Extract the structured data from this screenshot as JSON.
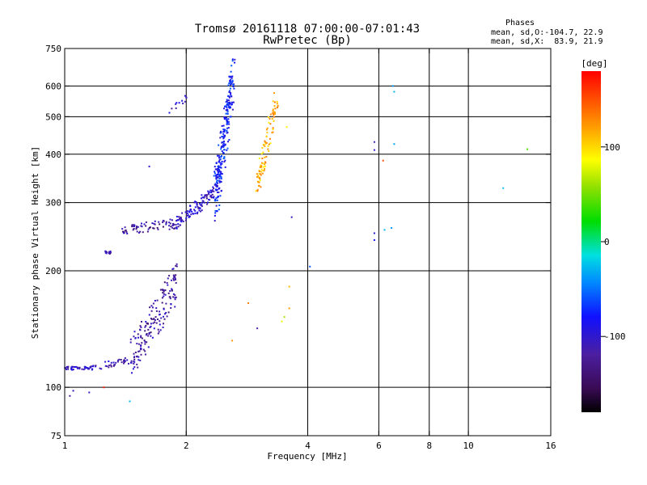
{
  "chart_data": {
    "type": "scatter",
    "title_line1": "Tromsø 20161118 07:00:00-07:01:43",
    "title_line2": "RwPretec (Bp)",
    "xlabel": "Frequency [MHz]",
    "ylabel": "Stationary phase Virtual Height [km]",
    "x_scale": "log",
    "y_scale": "log",
    "xlim": [
      1,
      16
    ],
    "ylim": [
      75,
      750
    ],
    "x_ticks": [
      1,
      2,
      4,
      6,
      8,
      10,
      16
    ],
    "y_ticks": [
      75,
      100,
      200,
      300,
      400,
      500,
      600,
      750
    ],
    "x_grid": [
      2,
      4,
      6,
      8,
      10
    ],
    "y_grid": [
      100,
      200,
      300,
      400,
      500,
      600
    ],
    "grid": true,
    "phases": {
      "heading": "Phases",
      "o_line": "mean, sd,O:-104.7, 22.9",
      "x_line": "mean, sd,X:  83.9, 21.9"
    },
    "colorbar": {
      "label": "[deg]",
      "range": [
        -180,
        180
      ],
      "ticks": [
        100,
        0,
        -100
      ],
      "placement": "right"
    },
    "traces": [
      {
        "f0": 1.0,
        "f1": 1.15,
        "h0": 112,
        "h1": 112,
        "phase": -105,
        "count": 40,
        "spread": 0.01
      },
      {
        "f0": 1.15,
        "f1": 1.45,
        "h0": 112,
        "h1": 118,
        "phase": -110,
        "count": 40,
        "spread": 0.02
      },
      {
        "f0": 1.45,
        "f1": 1.9,
        "h0": 118,
        "h1": 190,
        "phase": -120,
        "count": 170,
        "spread": 0.12
      },
      {
        "f0": 1.25,
        "f1": 1.3,
        "h0": 223,
        "h1": 223,
        "phase": -120,
        "count": 15,
        "spread": 0.008
      },
      {
        "f0": 1.38,
        "f1": 1.9,
        "h0": 255,
        "h1": 265,
        "phase": -125,
        "count": 70,
        "spread": 0.03
      },
      {
        "f0": 1.9,
        "f1": 2.35,
        "h0": 265,
        "h1": 320,
        "phase": -105,
        "count": 110,
        "spread": 0.04
      },
      {
        "f0": 2.35,
        "f1": 2.62,
        "h0": 300,
        "h1": 640,
        "phase": -80,
        "count": 260,
        "spread": 0.15
      },
      {
        "f0": 1.8,
        "f1": 2.0,
        "h0": 515,
        "h1": 560,
        "phase": -110,
        "count": 12,
        "spread": 0.02
      },
      {
        "f0": 3.0,
        "f1": 3.35,
        "h0": 330,
        "h1": 550,
        "phase": 110,
        "count": 100,
        "spread": 0.08
      }
    ],
    "points": [
      {
        "f": 1.62,
        "h": 372,
        "phase": -100
      },
      {
        "f": 3.65,
        "h": 275,
        "phase": -105
      },
      {
        "f": 4.05,
        "h": 205,
        "phase": -60
      },
      {
        "f": 5.85,
        "h": 430,
        "phase": -110
      },
      {
        "f": 5.85,
        "h": 410,
        "phase": -100
      },
      {
        "f": 5.85,
        "h": 250,
        "phase": -95
      },
      {
        "f": 5.85,
        "h": 240,
        "phase": -85
      },
      {
        "f": 6.15,
        "h": 385,
        "phase": 150
      },
      {
        "f": 6.2,
        "h": 255,
        "phase": -30
      },
      {
        "f": 6.45,
        "h": 258,
        "phase": -40
      },
      {
        "f": 6.5,
        "h": 600,
        "phase": -40
      },
      {
        "f": 6.55,
        "h": 580,
        "phase": -30
      },
      {
        "f": 6.55,
        "h": 425,
        "phase": -35
      },
      {
        "f": 12.2,
        "h": 327,
        "phase": -25
      },
      {
        "f": 14.0,
        "h": 412,
        "phase": 40
      },
      {
        "f": 2.85,
        "h": 165,
        "phase": 130
      },
      {
        "f": 3.0,
        "h": 142,
        "phase": -120
      },
      {
        "f": 2.6,
        "h": 132,
        "phase": 120
      },
      {
        "f": 3.45,
        "h": 148,
        "phase": 80
      },
      {
        "f": 3.5,
        "h": 152,
        "phase": 60
      },
      {
        "f": 3.6,
        "h": 160,
        "phase": 120
      },
      {
        "f": 3.6,
        "h": 182,
        "phase": 110
      },
      {
        "f": 3.55,
        "h": 470,
        "phase": 90
      },
      {
        "f": 1.45,
        "h": 92,
        "phase": -30
      },
      {
        "f": 1.05,
        "h": 98,
        "phase": -100
      },
      {
        "f": 1.03,
        "h": 95,
        "phase": -120
      },
      {
        "f": 1.15,
        "h": 97,
        "phase": -110
      },
      {
        "f": 1.25,
        "h": 100,
        "phase": 170
      }
    ]
  }
}
